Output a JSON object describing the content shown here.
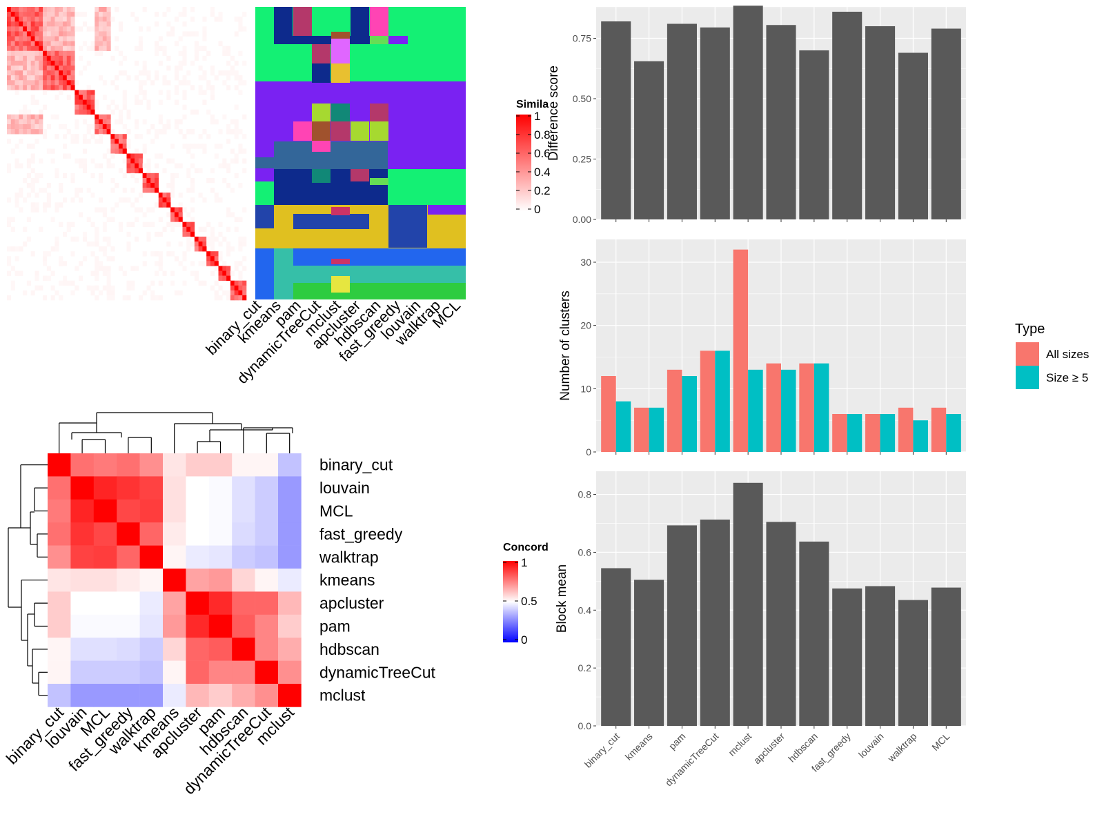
{
  "colors": {
    "panel_bg": "#ebebeb",
    "grid": "#ffffff",
    "bar": "#595959",
    "all_sizes": "#f8766d",
    "size_ge5": "#00bfc4",
    "heat_high": "#ff0000",
    "heat_mid": "#ffffff",
    "heat_low": "#0000ff"
  },
  "similarity_panel": {
    "legend_title": "Simila",
    "legend_ticks": [
      "1",
      "0.8",
      "0.6",
      "0.4",
      "0.2",
      "0"
    ],
    "method_labels": [
      "binary_cut",
      "kmeans",
      "pam",
      "dynamicTreeCut",
      "mclust",
      "apcluster",
      "hdbscan",
      "fast_greedy",
      "louvain",
      "walktrap",
      "MCL"
    ]
  },
  "concordance_panel": {
    "legend_title": "Concord",
    "legend_ticks": [
      "1",
      "0.5",
      "0"
    ],
    "row_labels": [
      "binary_cut",
      "louvain",
      "MCL",
      "fast_greedy",
      "walktrap",
      "kmeans",
      "apcluster",
      "pam",
      "hdbscan",
      "dynamicTreeCut",
      "mclust"
    ],
    "col_labels": [
      "binary_cut",
      "louvain",
      "MCL",
      "fast_greedy",
      "walktrap",
      "kmeans",
      "apcluster",
      "pam",
      "hdbscan",
      "dynamicTreeCut",
      "mclust"
    ]
  },
  "chart_data": [
    {
      "type": "heatmap",
      "rows": [
        "binary_cut",
        "louvain",
        "MCL",
        "fast_greedy",
        "walktrap",
        "kmeans",
        "apcluster",
        "pam",
        "hdbscan",
        "dynamicTreeCut",
        "mclust"
      ],
      "cols": [
        "binary_cut",
        "louvain",
        "MCL",
        "fast_greedy",
        "walktrap",
        "kmeans",
        "apcluster",
        "pam",
        "hdbscan",
        "dynamicTreeCut",
        "mclust"
      ],
      "values": [
        [
          1.0,
          0.78,
          0.76,
          0.78,
          0.72,
          0.55,
          0.6,
          0.6,
          0.52,
          0.52,
          0.38
        ],
        [
          0.78,
          1.0,
          0.93,
          0.9,
          0.87,
          0.56,
          0.5,
          0.49,
          0.44,
          0.4,
          0.3
        ],
        [
          0.76,
          0.93,
          1.0,
          0.86,
          0.88,
          0.56,
          0.5,
          0.49,
          0.44,
          0.4,
          0.3
        ],
        [
          0.78,
          0.9,
          0.86,
          1.0,
          0.8,
          0.54,
          0.5,
          0.49,
          0.43,
          0.4,
          0.3
        ],
        [
          0.72,
          0.87,
          0.88,
          0.8,
          1.0,
          0.52,
          0.46,
          0.45,
          0.4,
          0.38,
          0.3
        ],
        [
          0.55,
          0.56,
          0.56,
          0.54,
          0.52,
          1.0,
          0.68,
          0.7,
          0.58,
          0.52,
          0.46
        ],
        [
          0.6,
          0.5,
          0.5,
          0.5,
          0.46,
          0.68,
          1.0,
          0.92,
          0.8,
          0.8,
          0.64
        ],
        [
          0.6,
          0.49,
          0.49,
          0.49,
          0.45,
          0.7,
          0.92,
          1.0,
          0.82,
          0.74,
          0.6
        ],
        [
          0.52,
          0.44,
          0.44,
          0.43,
          0.4,
          0.58,
          0.8,
          0.82,
          1.0,
          0.74,
          0.66
        ],
        [
          0.52,
          0.4,
          0.4,
          0.4,
          0.38,
          0.52,
          0.8,
          0.74,
          0.74,
          1.0,
          0.72
        ],
        [
          0.38,
          0.3,
          0.3,
          0.3,
          0.3,
          0.46,
          0.64,
          0.6,
          0.66,
          0.72,
          1.0
        ]
      ],
      "legend_title": "Concord",
      "range": [
        0,
        1
      ]
    },
    {
      "type": "bar",
      "categories": [
        "binary_cut",
        "kmeans",
        "pam",
        "dynamicTreeCut",
        "mclust",
        "apcluster",
        "hdbscan",
        "fast_greedy",
        "louvain",
        "walktrap",
        "MCL"
      ],
      "values": [
        0.82,
        0.655,
        0.81,
        0.795,
        0.885,
        0.805,
        0.7,
        0.86,
        0.8,
        0.69,
        0.79
      ],
      "ylabel": "Difference score",
      "ylim": [
        0,
        0.88
      ],
      "yticks": [
        "0.00",
        "0.25",
        "0.50",
        "0.75"
      ]
    },
    {
      "type": "bar",
      "categories": [
        "binary_cut",
        "kmeans",
        "pam",
        "dynamicTreeCut",
        "mclust",
        "apcluster",
        "hdbscan",
        "fast_greedy",
        "louvain",
        "walktrap",
        "MCL"
      ],
      "series": [
        {
          "name": "All sizes",
          "values": [
            12,
            7,
            13,
            16,
            32,
            14,
            14,
            6,
            6,
            7,
            7
          ]
        },
        {
          "name": "Size ≥ 5",
          "values": [
            8,
            7,
            12,
            16,
            13,
            13,
            14,
            6,
            6,
            5,
            6
          ]
        }
      ],
      "ylabel": "Number of clusters",
      "ylim": [
        0,
        33.6
      ],
      "yticks": [
        "0",
        "10",
        "20",
        "30"
      ],
      "legend_title": "Type",
      "legend_position": "right"
    },
    {
      "type": "bar",
      "categories": [
        "binary_cut",
        "kmeans",
        "pam",
        "dynamicTreeCut",
        "mclust",
        "apcluster",
        "hdbscan",
        "fast_greedy",
        "louvain",
        "walktrap",
        "MCL"
      ],
      "values": [
        0.545,
        0.505,
        0.693,
        0.713,
        0.84,
        0.705,
        0.637,
        0.475,
        0.483,
        0.435,
        0.478
      ],
      "ylabel": "Block mean",
      "ylim": [
        0,
        0.88
      ],
      "yticks": [
        "0.0",
        "0.2",
        "0.4",
        "0.6",
        "0.8"
      ]
    }
  ]
}
